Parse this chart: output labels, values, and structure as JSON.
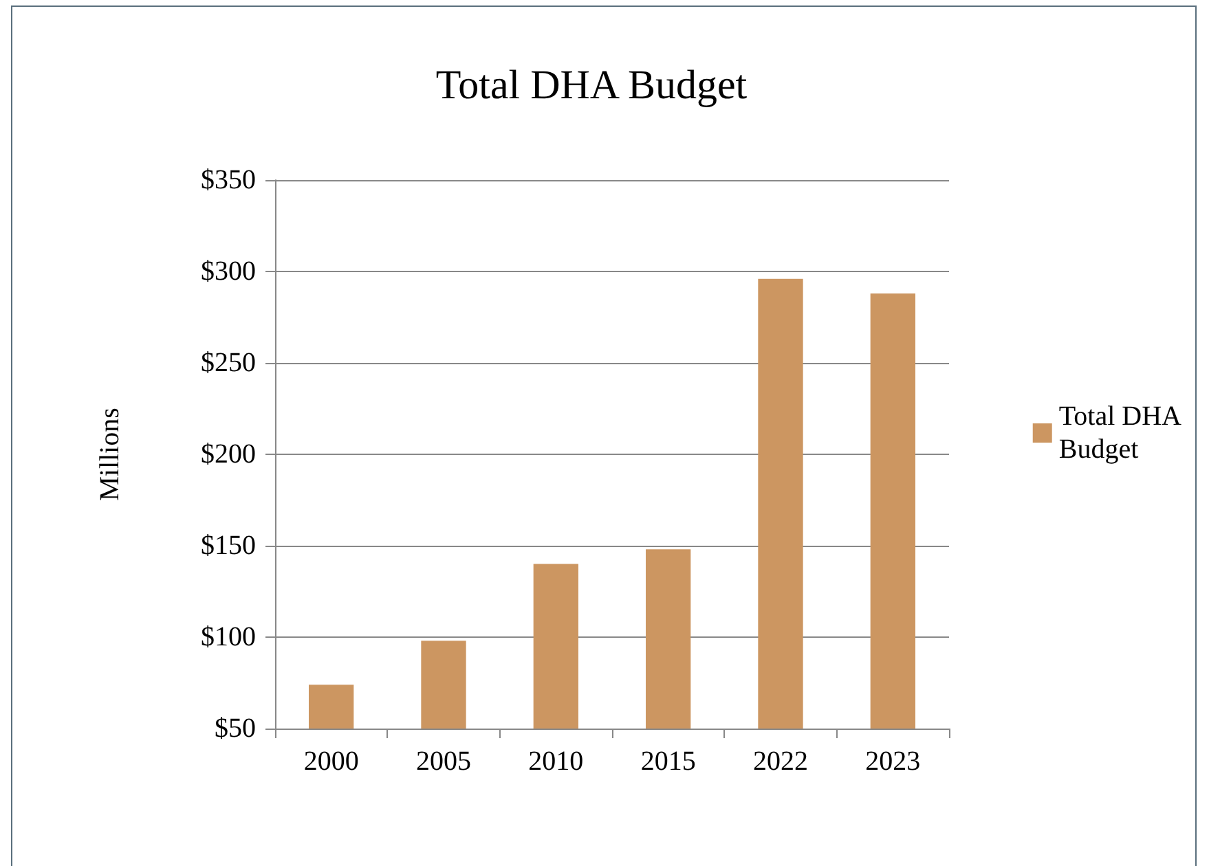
{
  "chart_data": {
    "type": "bar",
    "title": "Total DHA Budget",
    "ylabel": "Millions",
    "categories": [
      "2000",
      "2005",
      "2010",
      "2015",
      "2022",
      "2023"
    ],
    "series": [
      {
        "name": "Total DHA Budget",
        "color": "#cc9661",
        "values": [
          74,
          98,
          140,
          148,
          296,
          288
        ]
      }
    ],
    "ylim": [
      50,
      350
    ],
    "yticks": [
      {
        "value": 50,
        "label": "$50"
      },
      {
        "value": 100,
        "label": "$100"
      },
      {
        "value": 150,
        "label": "$150"
      },
      {
        "value": 200,
        "label": "$200"
      },
      {
        "value": 250,
        "label": "$250"
      },
      {
        "value": 300,
        "label": "$300"
      },
      {
        "value": 350,
        "label": "$350"
      }
    ],
    "grid": "y",
    "legend": "right"
  }
}
